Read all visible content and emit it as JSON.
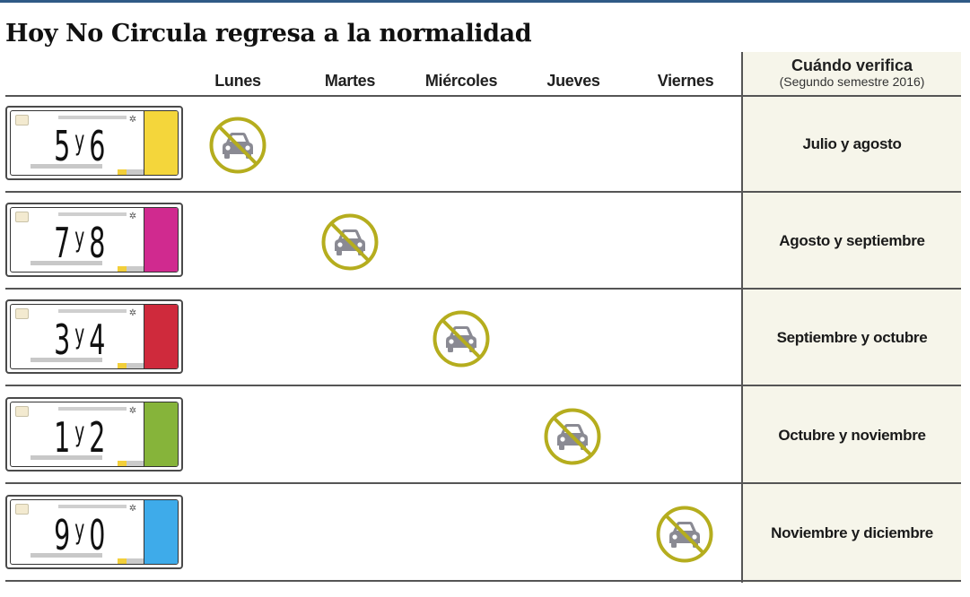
{
  "title": "Hoy No Circula regresa a la normalidad",
  "days": [
    "Lunes",
    "Martes",
    "Miércoles",
    "Jueves",
    "Viernes"
  ],
  "verification_header": {
    "title": "Cuándo verifica",
    "subtitle": "(Segundo semestre 2016)"
  },
  "icons": {
    "no_circulation": "no-car-icon"
  },
  "colors": {
    "top_bar": "#2f5a86",
    "prohibition_circle": "#b5ad1e",
    "car": "#8a8a93",
    "verification_bg": "#f6f5ea"
  },
  "rows": [
    {
      "plate_first": "5",
      "plate_sep": "y",
      "plate_second": "6",
      "plate_color": "#f4d63b",
      "restricted_day": "Lunes",
      "day_index": 0,
      "verification": "Julio y agosto"
    },
    {
      "plate_first": "7",
      "plate_sep": "y",
      "plate_second": "8",
      "plate_color": "#d02a8f",
      "restricted_day": "Martes",
      "day_index": 1,
      "verification": "Agosto y septiembre"
    },
    {
      "plate_first": "3",
      "plate_sep": "y",
      "plate_second": "4",
      "plate_color": "#cf2a3c",
      "restricted_day": "Miércoles",
      "day_index": 2,
      "verification": "Septiembre y octubre"
    },
    {
      "plate_first": "1",
      "plate_sep": "y",
      "plate_second": "2",
      "plate_color": "#86b43a",
      "restricted_day": "Jueves",
      "day_index": 3,
      "verification": "Octubre y noviembre"
    },
    {
      "plate_first": "9",
      "plate_sep": "y",
      "plate_second": "0",
      "plate_color": "#3eabea",
      "restricted_day": "Viernes",
      "day_index": 4,
      "verification": "Noviembre y diciembre"
    }
  ]
}
